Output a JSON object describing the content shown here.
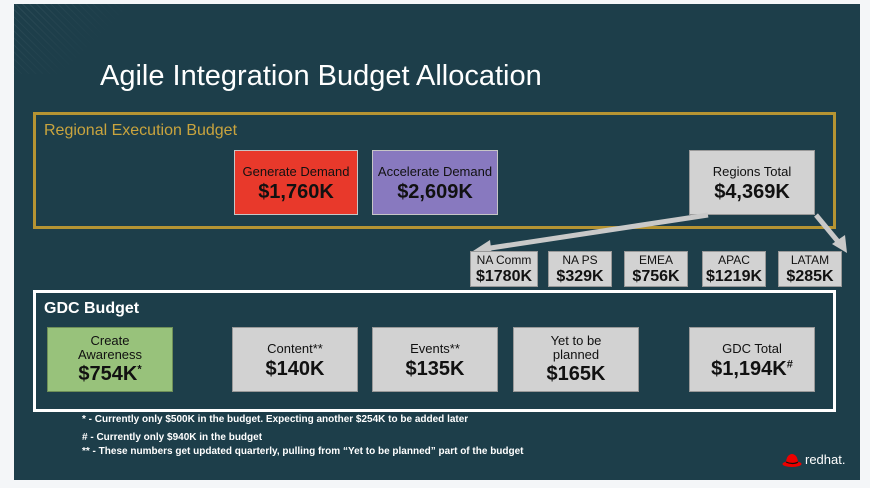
{
  "title": "Agile Integration Budget Allocation",
  "regional": {
    "label": "Regional Execution Budget",
    "generate": {
      "label": "Generate Demand",
      "value": "$1,760K"
    },
    "accelerate": {
      "label": "Accelerate Demand",
      "value": "$2,609K"
    },
    "total": {
      "label": "Regions Total",
      "value": "$4,369K"
    }
  },
  "regions": [
    {
      "label": "NA Comm",
      "value": "$1780K"
    },
    {
      "label": "NA PS",
      "value": "$329K"
    },
    {
      "label": "EMEA",
      "value": "$756K"
    },
    {
      "label": "APAC",
      "value": "$1219K"
    },
    {
      "label": "LATAM",
      "value": "$285K"
    }
  ],
  "gdc": {
    "label": "GDC Budget",
    "create": {
      "label": "Create Awareness",
      "value": "$754K",
      "mark": "*"
    },
    "content": {
      "label": "Content**",
      "value": "$140K"
    },
    "events": {
      "label": "Events**",
      "value": "$135K"
    },
    "yet": {
      "label": "Yet to be planned",
      "value": "$165K"
    },
    "total": {
      "label": "GDC Total",
      "value": "$1,194K",
      "mark": "#"
    }
  },
  "footnotes": [
    "* - Currently only $500K in the budget. Expecting another $254K to be added later",
    "# - Currently only $940K in the budget",
    "** - These numbers get updated quarterly, pulling from “Yet to be planned” part of the  budget"
  ],
  "logo": {
    "text": "redhat.",
    "icon": "redhat-logo-icon"
  },
  "colors": {
    "background": "#1d3e4a",
    "regional_frame": "#b69433",
    "generate": "#e8392b",
    "accelerate": "#8879bf",
    "create": "#98c27b",
    "grey_box": "#d2d2d2"
  }
}
